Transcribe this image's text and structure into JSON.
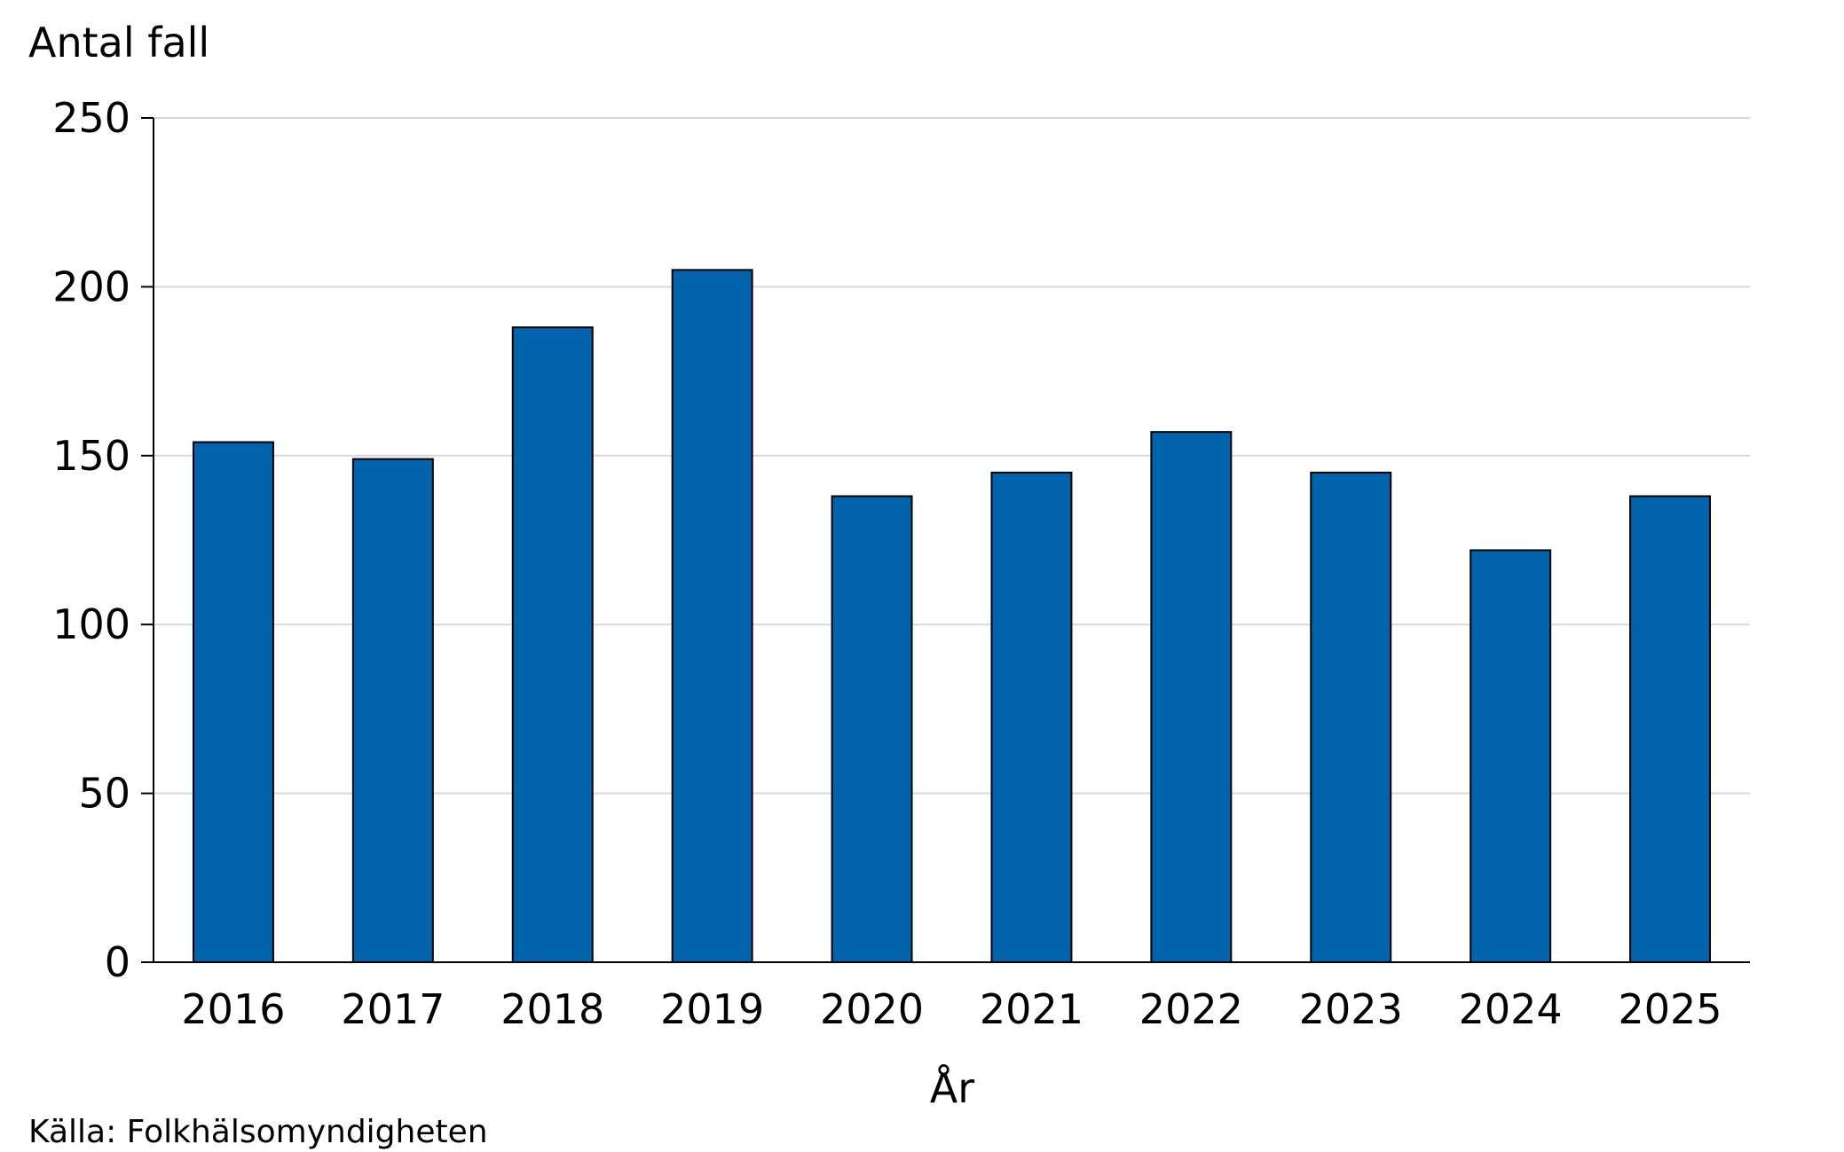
{
  "chart_data": {
    "type": "bar",
    "categories": [
      "2016",
      "2017",
      "2018",
      "2019",
      "2020",
      "2021",
      "2022",
      "2023",
      "2024",
      "2025"
    ],
    "values": [
      154,
      149,
      188,
      205,
      138,
      145,
      157,
      145,
      122,
      138
    ],
    "xlabel": "År",
    "ylabel": "Antal fall",
    "ylim": [
      0,
      250
    ],
    "yticks": [
      "0",
      "50",
      "100",
      "150",
      "200",
      "250"
    ],
    "grid": true,
    "legend": "none",
    "bar_color": "#0063ac",
    "bar_edge_color": "#000000",
    "gridline_color": "#d9d9d9"
  },
  "source_note": "Källa: Folkhälsomyndigheten"
}
